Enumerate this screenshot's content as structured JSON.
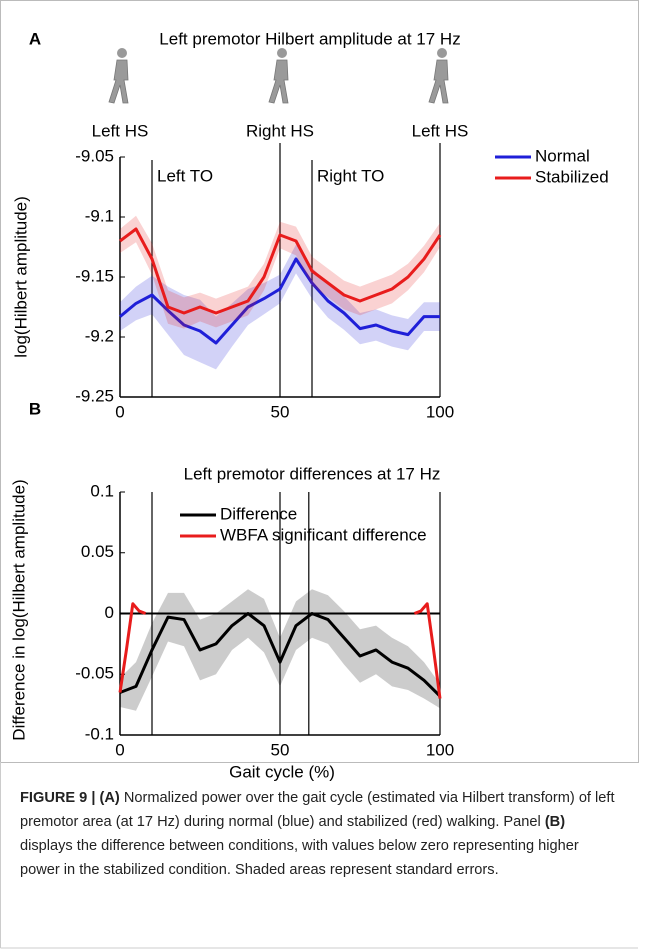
{
  "chart_data": [
    {
      "type": "line",
      "panel": "A",
      "title": "Left premotor Hilbert amplitude at 17 Hz",
      "ylabel": "log(Hilbert amplitude)",
      "xlim": [
        0,
        100
      ],
      "xticks": [
        0,
        50,
        100
      ],
      "ylim": [
        -9.25,
        -9.05
      ],
      "yticks": [
        -9.05,
        -9.1,
        -9.15,
        -9.2,
        -9.25
      ],
      "legend": "right",
      "heel_strikes": [
        {
          "x": 0,
          "label": "Left HS"
        },
        {
          "x": 50,
          "label": "Right HS"
        },
        {
          "x": 100,
          "label": "Left HS"
        }
      ],
      "toe_offs": [
        {
          "x": 10,
          "label": "Left TO"
        },
        {
          "x": 60,
          "label": "Right TO"
        }
      ],
      "series": [
        {
          "name": "Normal",
          "color": "#1f1fd8",
          "x": [
            0,
            5,
            10,
            15,
            20,
            25,
            30,
            35,
            40,
            45,
            50,
            55,
            60,
            65,
            70,
            75,
            80,
            85,
            90,
            95,
            100
          ],
          "values": [
            -9.183,
            -9.172,
            -9.165,
            -9.178,
            -9.19,
            -9.195,
            -9.205,
            -9.19,
            -9.175,
            -9.168,
            -9.16,
            -9.135,
            -9.155,
            -9.17,
            -9.18,
            -9.193,
            -9.19,
            -9.195,
            -9.198,
            -9.183,
            -9.183
          ],
          "errors": [
            0.012,
            0.014,
            0.016,
            0.02,
            0.025,
            0.026,
            0.022,
            0.018,
            0.015,
            0.013,
            0.012,
            0.012,
            0.013,
            0.014,
            0.014,
            0.013,
            0.013,
            0.013,
            0.013,
            0.012,
            0.012
          ]
        },
        {
          "name": "Stabilized",
          "color": "#e81c1c",
          "x": [
            0,
            5,
            10,
            15,
            20,
            25,
            30,
            35,
            40,
            45,
            50,
            55,
            60,
            65,
            70,
            75,
            80,
            85,
            90,
            95,
            100
          ],
          "values": [
            -9.12,
            -9.11,
            -9.135,
            -9.175,
            -9.18,
            -9.175,
            -9.18,
            -9.175,
            -9.17,
            -9.15,
            -9.115,
            -9.12,
            -9.145,
            -9.155,
            -9.165,
            -9.17,
            -9.165,
            -9.16,
            -9.15,
            -9.135,
            -9.115
          ],
          "errors": [
            0.01,
            0.011,
            0.013,
            0.014,
            0.013,
            0.012,
            0.012,
            0.012,
            0.012,
            0.011,
            0.011,
            0.012,
            0.012,
            0.012,
            0.012,
            0.012,
            0.012,
            0.012,
            0.011,
            0.011,
            0.01
          ]
        }
      ]
    },
    {
      "type": "line",
      "panel": "B",
      "title": "Left premotor differences at 17 Hz",
      "ylabel": "Difference in log(Hilbert amplitude)",
      "xlabel": "Gait cycle (%)",
      "xlim": [
        0,
        100
      ],
      "xticks": [
        0,
        50,
        100
      ],
      "ylim": [
        -0.1,
        0.1
      ],
      "yticks": [
        0.1,
        0.05,
        0,
        -0.05,
        -0.1
      ],
      "legend": "upper left",
      "hline": 0,
      "vlines": [
        10,
        50,
        59,
        100
      ],
      "series": [
        {
          "name": "Difference",
          "color": "#000000",
          "x": [
            0,
            5,
            10,
            15,
            20,
            25,
            30,
            35,
            40,
            45,
            50,
            55,
            60,
            65,
            70,
            75,
            80,
            85,
            90,
            95,
            100
          ],
          "values": [
            -0.065,
            -0.06,
            -0.03,
            -0.003,
            -0.005,
            -0.03,
            -0.025,
            -0.01,
            0,
            -0.01,
            -0.04,
            -0.01,
            0,
            -0.005,
            -0.02,
            -0.035,
            -0.03,
            -0.04,
            -0.045,
            -0.055,
            -0.068
          ],
          "errors": [
            0.012,
            0.02,
            0.022,
            0.02,
            0.022,
            0.025,
            0.025,
            0.02,
            0.02,
            0.022,
            0.02,
            0.02,
            0.02,
            0.02,
            0.022,
            0.022,
            0.02,
            0.02,
            0.018,
            0.015,
            0.01
          ]
        },
        {
          "name": "WBFA significant difference",
          "color": "#e81c1c",
          "x": [
            0,
            2,
            4,
            6,
            8,
            50,
            92,
            94,
            96,
            98,
            100
          ],
          "values": [
            -0.065,
            -0.03,
            0.008,
            0.002,
            0,
            null,
            0,
            0.002,
            0.008,
            -0.03,
            -0.07
          ]
        }
      ]
    }
  ],
  "caption": [
    {
      "text": "FIGURE 9 | (A)",
      "bold": true
    },
    {
      "text": " Normalized power over the gait cycle (estimated via Hilbert transform) of left premotor area (at 17 Hz) during normal (blue) and stabilized (red) walking. Panel ",
      "bold": false
    },
    {
      "text": "(B)",
      "bold": true
    },
    {
      "text": " displays the difference between conditions, with values below zero representing higher power in the stabilized condition. Shaded areas represent standard errors.",
      "bold": false
    }
  ]
}
